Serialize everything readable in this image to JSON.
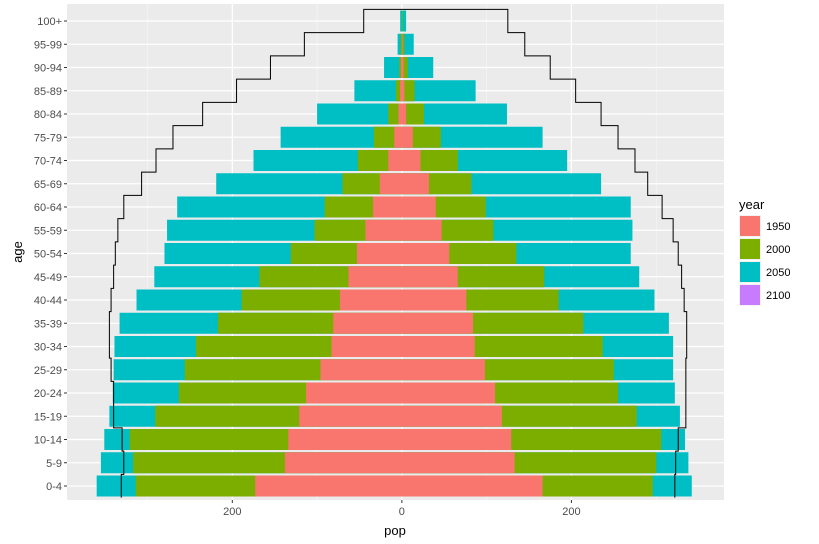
{
  "chart_data": {
    "type": "bar",
    "orientation": "horizontal",
    "title": "",
    "xlabel": "pop",
    "ylabel": "age",
    "xlim": [
      -395,
      380
    ],
    "x_ticks": [
      -200,
      0,
      200
    ],
    "x_tick_labels": [
      "200",
      "0",
      "200"
    ],
    "grid": true,
    "legend": {
      "title": "year",
      "placement": "right"
    },
    "categories": [
      "0-4",
      "5-9",
      "10-14",
      "15-19",
      "20-24",
      "25-29",
      "30-34",
      "35-39",
      "40-44",
      "45-49",
      "50-54",
      "55-59",
      "60-64",
      "65-69",
      "70-74",
      "75-79",
      "80-84",
      "85-89",
      "90-94",
      "95-99",
      "100+"
    ],
    "series": [
      {
        "name": "1950",
        "color": "#F8766D",
        "left": [
          -173,
          -138,
          -134,
          -121,
          -113,
          -96,
          -83,
          -81,
          -73,
          -63,
          -53,
          -43,
          -34,
          -26,
          -16,
          -9,
          -4,
          -2,
          -1,
          0,
          0
        ],
        "right": [
          166,
          133,
          129,
          118,
          110,
          98,
          86,
          84,
          76,
          66,
          56,
          47,
          40,
          32,
          22,
          13,
          5,
          3,
          2,
          1,
          0
        ]
      },
      {
        "name": "2000",
        "color": "#7CAE00",
        "left": [
          -314,
          -317,
          -321,
          -291,
          -263,
          -256,
          -243,
          -217,
          -189,
          -168,
          -131,
          -103,
          -91,
          -70,
          -52,
          -33,
          -16,
          -7,
          -3,
          -1,
          0
        ],
        "right": [
          296,
          300,
          306,
          277,
          255,
          250,
          237,
          214,
          185,
          168,
          135,
          108,
          99,
          82,
          66,
          46,
          26,
          15,
          7,
          3,
          1
        ]
      },
      {
        "name": "2050",
        "color": "#00BFC4",
        "left": [
          -360,
          -355,
          -351,
          -345,
          -341,
          -340,
          -339,
          -333,
          -313,
          -292,
          -280,
          -277,
          -265,
          -219,
          -175,
          -143,
          -100,
          -56,
          -21,
          -5,
          -2
        ],
        "right": [
          342,
          338,
          334,
          328,
          322,
          320,
          320,
          315,
          298,
          280,
          270,
          272,
          270,
          235,
          195,
          166,
          124,
          87,
          37,
          14,
          5
        ]
      },
      {
        "name": "2100",
        "color": "#C77CFF",
        "left": [],
        "right": []
      }
    ],
    "outline_2100": {
      "name": "2100",
      "left": [
        -331,
        -328,
        -330,
        -340,
        -340,
        -343,
        -345,
        -345,
        -343,
        -340,
        -338,
        -335,
        -328,
        -307,
        -290,
        -270,
        -235,
        -195,
        -155,
        -115,
        -45
      ],
      "right": [
        322,
        323,
        326,
        335,
        335,
        335,
        336,
        336,
        333,
        330,
        326,
        320,
        307,
        290,
        275,
        255,
        235,
        205,
        175,
        145,
        125
      ]
    }
  }
}
